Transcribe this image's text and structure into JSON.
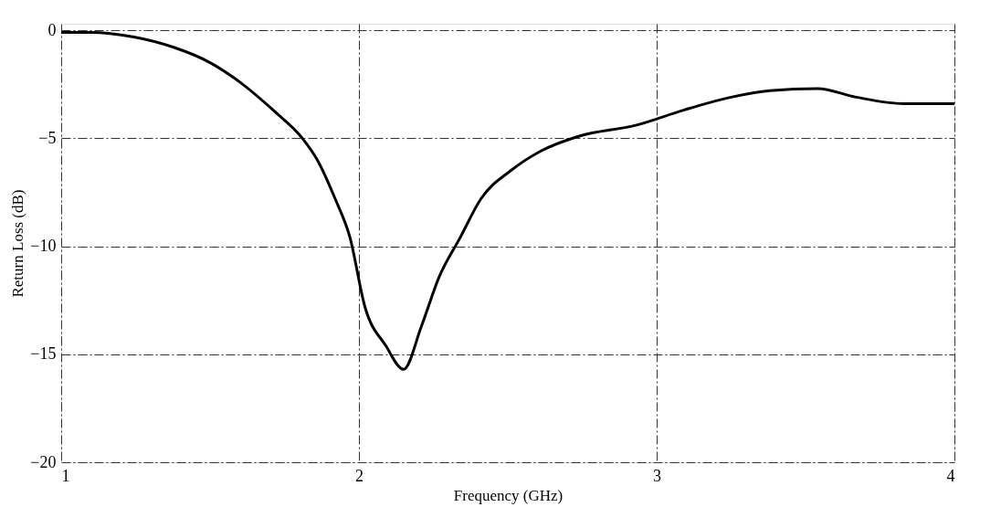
{
  "chart_data": {
    "type": "line",
    "xlabel": "Frequency (GHz)",
    "ylabel": "Return Loss (dB)",
    "x": [
      1.0,
      1.1,
      1.24,
      1.38,
      1.5,
      1.6,
      1.72,
      1.81,
      1.86,
      1.92,
      1.97,
      2.02,
      2.09,
      2.15,
      2.21,
      2.27,
      2.34,
      2.41,
      2.51,
      2.61,
      2.74,
      2.93,
      3.09,
      3.25,
      3.38,
      3.54,
      3.67,
      3.83,
      4.0
    ],
    "series": [
      {
        "color": "#000000",
        "values": [
          -0.1,
          -0.1,
          -0.3,
          -0.8,
          -1.5,
          -2.4,
          -3.8,
          -5.0,
          -6.0,
          -7.8,
          -9.6,
          -12.8,
          -14.6,
          -15.7,
          -13.7,
          -11.4,
          -9.6,
          -7.8,
          -6.5,
          -5.6,
          -4.9,
          -4.4,
          -3.7,
          -3.1,
          -2.8,
          -2.7,
          -3.1,
          -3.4,
          -3.4
        ]
      }
    ],
    "xlim": [
      1,
      4
    ],
    "xticks": [
      1,
      2,
      3,
      4
    ],
    "ylim": [
      -20,
      0.3
    ],
    "yticks": [
      0,
      -5,
      -10,
      -15,
      -20
    ],
    "grid": true,
    "line_style": "solid",
    "marker": "none"
  }
}
